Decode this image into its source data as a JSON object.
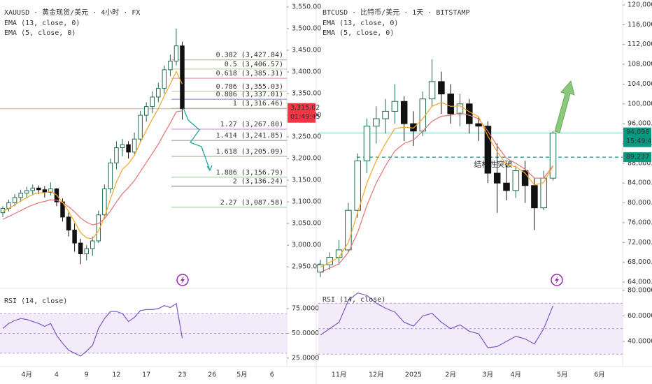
{
  "chart_data": [
    {
      "type": "candlestick",
      "title": "XAUUSD · 黄金现货/美元 · 4小时 · FX",
      "up_color": "#1f6b4f",
      "down_color": "#111111",
      "categories": [
        null,
        null,
        null,
        null,
        "4月",
        null,
        null,
        null,
        null,
        "4",
        null,
        null,
        null,
        null,
        "9",
        null,
        null,
        null,
        null,
        "12",
        null,
        null,
        null,
        null,
        "17",
        null,
        null,
        null,
        null,
        null,
        "23",
        null,
        null,
        null,
        null,
        "26",
        null,
        null,
        null,
        null,
        "5月",
        null,
        null,
        null,
        null,
        "6",
        null,
        null
      ],
      "open": [
        3075,
        3085,
        3098,
        3110,
        3120,
        3126,
        3132,
        3128,
        3122,
        3130,
        3100,
        3065,
        3035,
        3005,
        2980,
        2992,
        3010,
        3070,
        3130,
        3190,
        3225,
        3232,
        3215,
        3245,
        3300,
        3320,
        3342,
        3362,
        3405,
        3425,
        3460,
        null,
        null,
        null,
        null,
        null,
        null,
        null,
        null,
        null,
        null,
        null,
        null,
        null,
        null,
        null,
        null,
        null
      ],
      "high": [
        3090,
        3105,
        3118,
        3128,
        3135,
        3140,
        3138,
        3136,
        3145,
        3132,
        3108,
        3075,
        3050,
        3015,
        3000,
        3020,
        3080,
        3140,
        3200,
        3240,
        3245,
        3240,
        3260,
        3310,
        3330,
        3355,
        3375,
        3415,
        3440,
        3500,
        3470,
        null,
        null,
        null,
        null,
        null,
        null,
        null,
        null,
        null,
        null,
        null,
        null,
        null,
        null,
        null,
        null,
        null
      ],
      "low": [
        3065,
        3078,
        3090,
        3100,
        3108,
        3115,
        3118,
        3110,
        3115,
        3090,
        3055,
        3020,
        2985,
        2956,
        2965,
        2975,
        3005,
        3060,
        3120,
        3175,
        3205,
        3200,
        3210,
        3240,
        3285,
        3305,
        3330,
        3350,
        3390,
        3415,
        3290,
        null,
        null,
        null,
        null,
        null,
        null,
        null,
        null,
        null,
        null,
        null,
        null,
        null,
        null,
        null,
        null,
        null
      ],
      "close": [
        3085,
        3098,
        3110,
        3120,
        3126,
        3132,
        3128,
        3122,
        3130,
        3100,
        3065,
        3035,
        3005,
        2980,
        2992,
        3010,
        3070,
        3130,
        3190,
        3225,
        3232,
        3215,
        3245,
        3300,
        3320,
        3342,
        3362,
        3405,
        3425,
        3460,
        3315.02,
        null,
        null,
        null,
        null,
        null,
        null,
        null,
        null,
        null,
        null,
        null,
        null,
        null,
        null,
        null,
        null,
        null
      ],
      "series": [
        {
          "name": "EMA (13, close, 0)",
          "color": "#e57373",
          "values": [
            3060,
            3066,
            3073,
            3080,
            3087,
            3093,
            3098,
            3101,
            3105,
            3104,
            3098,
            3089,
            3077,
            3063,
            3053,
            3047,
            3050,
            3061,
            3079,
            3100,
            3119,
            3133,
            3149,
            3170,
            3191,
            3212,
            3233,
            3258,
            3282,
            3308,
            3310,
            null,
            null,
            null,
            null,
            null,
            null,
            null,
            null,
            null,
            null,
            null,
            null,
            null,
            null,
            null,
            null,
            null
          ]
        },
        {
          "name": "EMA (5, close, 0)",
          "color": "#f5a623",
          "values": [
            3078,
            3085,
            3093,
            3102,
            3110,
            3117,
            3121,
            3121,
            3124,
            3116,
            3099,
            3078,
            3054,
            3029,
            3017,
            3015,
            3033,
            3065,
            3107,
            3146,
            3175,
            3188,
            3207,
            3238,
            3265,
            3291,
            3315,
            3345,
            3372,
            3401,
            3372,
            null,
            null,
            null,
            null,
            null,
            null,
            null,
            null,
            null,
            null,
            null,
            null,
            null,
            null,
            null,
            null,
            null
          ]
        }
      ],
      "ylim": [
        2902,
        3566
      ],
      "yticks": [
        {
          "value": 2950,
          "label": "2,950.00"
        },
        {
          "value": 3000,
          "label": "3,000.00"
        },
        {
          "value": 3050,
          "label": "3,050.00"
        },
        {
          "value": 3100,
          "label": "3,100.00"
        },
        {
          "value": 3150,
          "label": "3,150.00"
        },
        {
          "value": 3200,
          "label": "3,200.00"
        },
        {
          "value": 3250,
          "label": "3,250.00"
        },
        {
          "value": 3300,
          "label": "3,300.00"
        },
        {
          "value": 3350,
          "label": "3,350.00"
        },
        {
          "value": 3400,
          "label": "3,400.00"
        },
        {
          "value": 3450,
          "label": "3,450.00"
        },
        {
          "value": 3500,
          "label": "3,500.00"
        },
        {
          "value": 3550,
          "label": "3,550.00"
        }
      ],
      "grid": false,
      "last_price": {
        "value": 3315.02,
        "label": "3,315.02",
        "color": "#f23645"
      },
      "countdown": "01:49:45",
      "fib_levels": [
        {
          "value": 3427.84,
          "label": "0.382 (3,427.84)",
          "color": "#e53935"
        },
        {
          "value": 3406.57,
          "label": "0.5 (3,406.57)",
          "color": "#7cb342"
        },
        {
          "value": 3385.31,
          "label": "0.618 (3,385.31)",
          "color": "#d32f2f"
        },
        {
          "value": 3355.03,
          "label": "0.786 (3,355.03)",
          "color": "#689f38"
        },
        {
          "value": 3337.01,
          "label": "0.886 (3,337.01)",
          "color": "#1a237e"
        },
        {
          "value": 3316.46,
          "label": "1 (3,316.46)",
          "color": "#9e9e9e"
        },
        {
          "value": 3267.8,
          "label": "1.27 (3,267.80)",
          "color": "#9c27b0"
        },
        {
          "value": 3241.85,
          "label": "1.414 (3,241.85)",
          "color": "#37474f"
        },
        {
          "value": 3205.09,
          "label": "1.618 (3,205.09)",
          "color": "#33691e"
        },
        {
          "value": 3156.79,
          "label": "1.886 (3,156.79)",
          "color": "#43a047"
        },
        {
          "value": 3136.24,
          "label": "2 (3,136.24)",
          "color": "#000000"
        },
        {
          "value": 3087.58,
          "label": "2.27 (3,087.58)",
          "color": "#43a047"
        }
      ],
      "rsi": {
        "title": "RSI (14, close)",
        "color": "#7e57c2",
        "band": [
          30,
          70
        ],
        "ylim": [
          16.5,
          94
        ],
        "yticks": [
          {
            "value": 25,
            "label": "25.0000"
          },
          {
            "value": 50,
            "label": "50.0000"
          },
          {
            "value": 75,
            "label": "75.0000"
          }
        ],
        "values": [
          55,
          60,
          63,
          65,
          64,
          62,
          60,
          57,
          60,
          48,
          40,
          33,
          30,
          27,
          32,
          38,
          55,
          65,
          72,
          72,
          70,
          62,
          66,
          73,
          74,
          74,
          75,
          78,
          76,
          80,
          45,
          null,
          null,
          null,
          null,
          null,
          null,
          null,
          null,
          null,
          null,
          null,
          null,
          null,
          null,
          null,
          null,
          null
        ]
      }
    },
    {
      "type": "candlestick",
      "title": "BTCUSD · 比特币/美元 · 1天 · BITSTAMP",
      "up_color": "#1f6b4f",
      "down_color": "#111111",
      "categories": [
        null,
        null,
        "11月",
        null,
        null,
        null,
        "12月",
        null,
        null,
        null,
        "2025",
        null,
        null,
        null,
        "2月",
        null,
        null,
        null,
        "3月",
        null,
        null,
        "4月",
        null,
        null,
        null,
        null,
        "5月",
        null,
        null,
        null,
        "6月",
        null,
        null
      ],
      "open": [
        66000,
        67500,
        69000,
        70500,
        78500,
        88500,
        95500,
        97000,
        98500,
        100500,
        96000,
        94500,
        101000,
        104500,
        102000,
        98000,
        100000,
        96000,
        95500,
        86000,
        84000,
        82500,
        86500,
        83500,
        79000,
        85000,
        null,
        null,
        null,
        null,
        null,
        null,
        null
      ],
      "high": [
        68500,
        70000,
        72500,
        80000,
        90000,
        97000,
        99500,
        101000,
        104000,
        101500,
        98500,
        102500,
        109000,
        106500,
        104000,
        102000,
        101000,
        97500,
        96500,
        92000,
        88000,
        87500,
        88500,
        85000,
        86500,
        94500,
        null,
        null,
        null,
        null,
        null,
        null,
        null
      ],
      "low": [
        65000,
        66500,
        67500,
        70000,
        77000,
        86000,
        92000,
        94000,
        96000,
        92500,
        91500,
        93500,
        99500,
        98000,
        96000,
        95500,
        94000,
        92500,
        84000,
        78000,
        80500,
        81000,
        80000,
        74500,
        78500,
        84500,
        null,
        null,
        null,
        null,
        null,
        null,
        null
      ],
      "close": [
        67500,
        69000,
        70500,
        78500,
        88500,
        95500,
        97000,
        98500,
        100500,
        96000,
        94500,
        101000,
        104500,
        102000,
        98000,
        100000,
        96000,
        95500,
        86000,
        84000,
        82500,
        86500,
        83500,
        79000,
        85000,
        94096,
        null,
        null,
        null,
        null,
        null,
        null,
        null
      ],
      "series": [
        {
          "name": "EMA (13, close, 0)",
          "color": "#e57373",
          "values": [
            66000,
            66800,
            67700,
            70000,
            74000,
            79500,
            84000,
            87500,
            90500,
            92000,
            92700,
            94500,
            96500,
            97500,
            97700,
            98200,
            97700,
            97000,
            94500,
            91500,
            89000,
            88000,
            86800,
            85000,
            85000,
            87500,
            null,
            null,
            null,
            null,
            null,
            null,
            null
          ]
        },
        {
          "name": "EMA (5, close, 0)",
          "color": "#f5a623",
          "values": [
            67000,
            68000,
            69000,
            72000,
            78000,
            84000,
            88500,
            92000,
            95000,
            95300,
            95100,
            97000,
            99500,
            100300,
            99500,
            99600,
            98400,
            97400,
            93500,
            90300,
            87700,
            87300,
            86000,
            83600,
            84100,
            87400,
            null,
            null,
            null,
            null,
            null,
            null,
            null
          ]
        }
      ],
      "ylim": [
        62870,
        120990
      ],
      "yticks": [
        {
          "value": 64000,
          "label": "64,000.00"
        },
        {
          "value": 68000,
          "label": "68,000.00"
        },
        {
          "value": 72000,
          "label": "72,000.00"
        },
        {
          "value": 76000,
          "label": "76,000.00"
        },
        {
          "value": 80000,
          "label": "80,000.00"
        },
        {
          "value": 84000,
          "label": "84,000.00"
        },
        {
          "value": 88000,
          "label": "88,000.00"
        },
        {
          "value": 92000,
          "label": "92,000.00"
        },
        {
          "value": 96000,
          "label": "96,000.00"
        },
        {
          "value": 100000,
          "label": "100,000.00"
        },
        {
          "value": 104000,
          "label": "104,000.00"
        },
        {
          "value": 108000,
          "label": "108,000.00"
        },
        {
          "value": 112000,
          "label": "112,000.00"
        },
        {
          "value": 116000,
          "label": "116,000.00"
        },
        {
          "value": 120000,
          "label": "120,000.00"
        }
      ],
      "grid": false,
      "last_price": {
        "value": 94096,
        "label": "94,096",
        "color": "#089981"
      },
      "countdown": "15:49:45",
      "levels": [
        {
          "value": 89237,
          "label": "89,237",
          "color": "#089981"
        }
      ],
      "annotation": "结构性突破",
      "rsi": {
        "title": "RSI (14, close)",
        "color": "#7e57c2",
        "band": [
          30,
          70
        ],
        "ylim": [
          20.3,
          81.6
        ],
        "yticks": [
          {
            "value": 40,
            "label": "40.0000"
          },
          {
            "value": 60,
            "label": "60.0000"
          },
          {
            "value": 80,
            "label": "80.0000"
          }
        ],
        "values": [
          45,
          50,
          55,
          72,
          78,
          76,
          70,
          66,
          63,
          55,
          52,
          60,
          62,
          55,
          50,
          53,
          48,
          46,
          35,
          36,
          40,
          44,
          42,
          38,
          50,
          68,
          null,
          null,
          null,
          null,
          null,
          null,
          null
        ]
      }
    }
  ]
}
